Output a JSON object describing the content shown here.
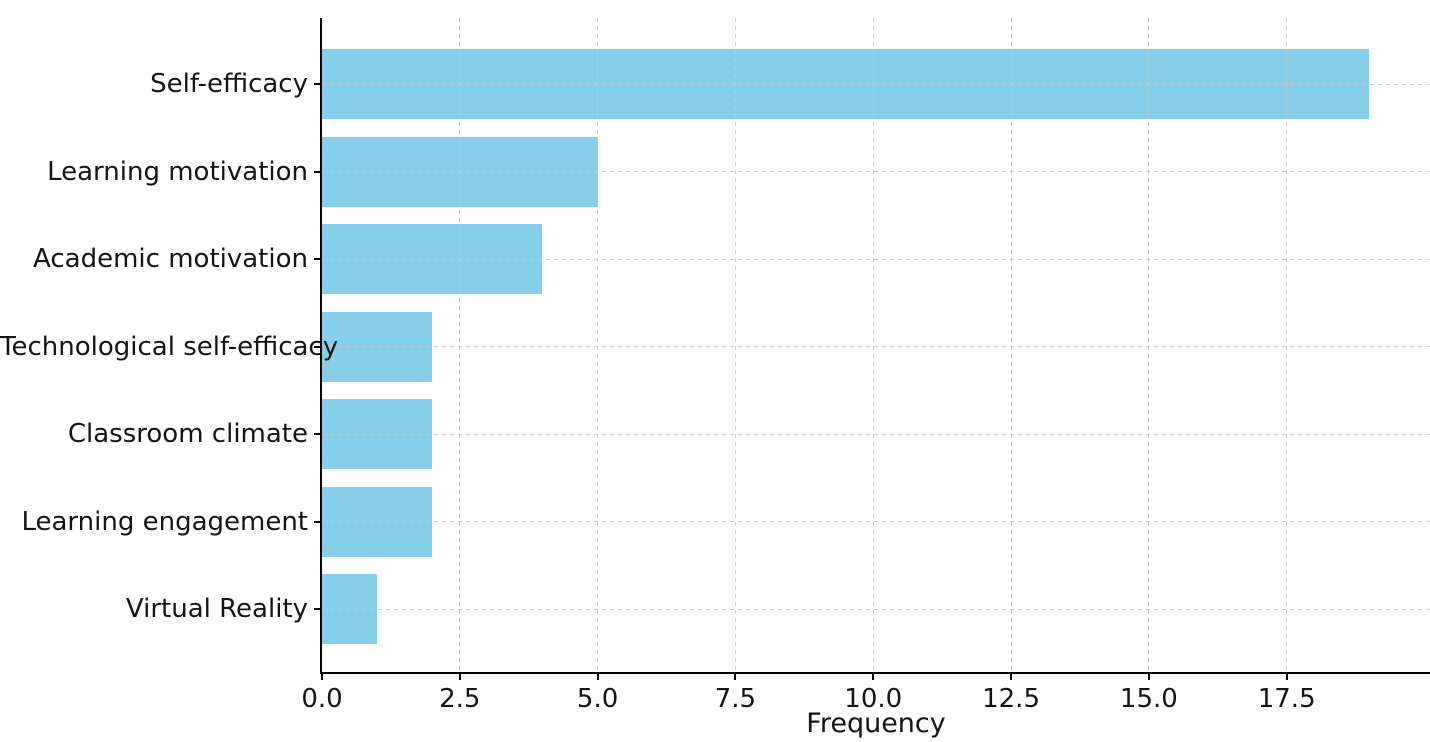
{
  "chart_data": {
    "type": "bar",
    "orientation": "horizontal",
    "title": "",
    "xlabel": "Frequency",
    "ylabel": "",
    "categories": [
      "Self-efficacy",
      "Learning motivation",
      "Academic motivation",
      "Technological self-efficacy",
      "Classroom climate",
      "Learning engagement",
      "Virtual Reality"
    ],
    "values": [
      19,
      5,
      4,
      2,
      2,
      2,
      1
    ],
    "xlim": [
      0,
      20.1
    ],
    "xticks": [
      0,
      2.5,
      5,
      7.5,
      10,
      12.5,
      15,
      17.5
    ],
    "xtick_labels": [
      "0.0",
      "2.5",
      "5.0",
      "7.5",
      "10.0",
      "12.5",
      "15.0",
      "17.5"
    ],
    "grid": true,
    "grid_style": "dashed",
    "legend": false,
    "bar_color": "#87CEEB",
    "grid_color": "#c8c8c8",
    "axis_color": "#000000",
    "text_color": "#141414"
  }
}
